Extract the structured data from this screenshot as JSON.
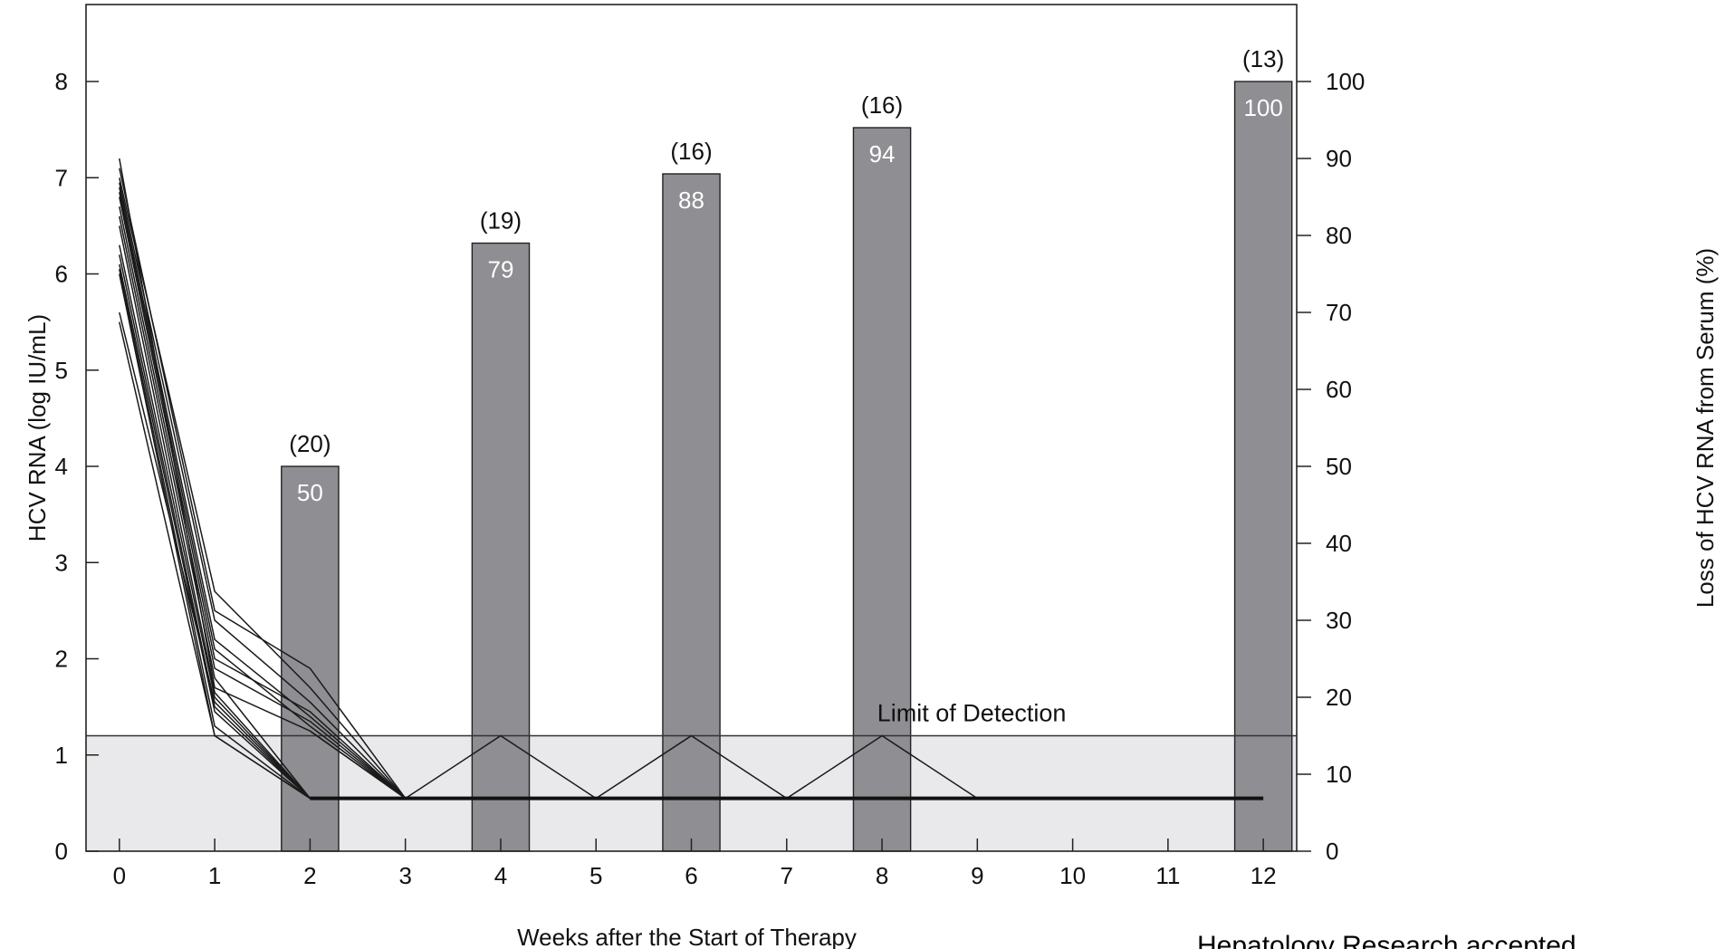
{
  "chart_data": {
    "type": "bar+line",
    "xlabel": "Weeks after the Start of Therapy",
    "ylabel_left": "HCV RNA (log IU/mL)",
    "ylabel_right": "Loss of HCV RNA from Serum (%)",
    "x_ticks": [
      0,
      1,
      2,
      3,
      4,
      5,
      6,
      7,
      8,
      9,
      10,
      11,
      12
    ],
    "xlim": [
      -0.35,
      12.35
    ],
    "y_left_ticks": [
      0,
      1,
      2,
      3,
      4,
      5,
      6,
      7,
      8
    ],
    "ylim_left": [
      0,
      8.8
    ],
    "y_right_ticks": [
      0,
      10,
      20,
      30,
      40,
      50,
      60,
      70,
      80,
      90,
      100
    ],
    "ylim_right": [
      0,
      110
    ],
    "grid": false,
    "limit_of_detection": {
      "label": "Limit of Detection",
      "value": 1.2,
      "undetectable_value": 0.55
    },
    "bars": [
      {
        "week": 2,
        "percent": 50,
        "n": "(20)",
        "label": "50"
      },
      {
        "week": 4,
        "percent": 79,
        "n": "(19)",
        "label": "79"
      },
      {
        "week": 6,
        "percent": 88,
        "n": "(16)",
        "label": "88"
      },
      {
        "week": 8,
        "percent": 94,
        "n": "(16)",
        "label": "94"
      },
      {
        "week": 12,
        "percent": 100,
        "n": "(13)",
        "label": "100"
      }
    ],
    "patient_series": [
      {
        "x": [
          0,
          1,
          2,
          3
        ],
        "y": [
          7.2,
          1.7,
          1.25,
          0.55
        ]
      },
      {
        "x": [
          0,
          1,
          2,
          3
        ],
        "y": [
          7.1,
          2.5,
          1.9,
          0.55
        ]
      },
      {
        "x": [
          0,
          1,
          2,
          3
        ],
        "y": [
          7.0,
          2.7,
          1.7,
          0.55
        ]
      },
      {
        "x": [
          0,
          1,
          2,
          3
        ],
        "y": [
          6.95,
          2.4,
          1.55,
          0.55
        ]
      },
      {
        "x": [
          0,
          1,
          2,
          3
        ],
        "y": [
          6.9,
          2.2,
          1.4,
          0.55
        ]
      },
      {
        "x": [
          0,
          1,
          2,
          3
        ],
        "y": [
          6.85,
          2.1,
          1.3,
          0.55
        ]
      },
      {
        "x": [
          0,
          1,
          2,
          3
        ],
        "y": [
          6.8,
          2.0,
          1.45,
          0.55
        ]
      },
      {
        "x": [
          0,
          1,
          2,
          3
        ],
        "y": [
          6.7,
          1.9,
          1.35,
          0.55
        ]
      },
      {
        "x": [
          0,
          1,
          2
        ],
        "y": [
          6.6,
          1.8,
          0.55
        ]
      },
      {
        "x": [
          0,
          1,
          2
        ],
        "y": [
          6.5,
          1.65,
          0.55
        ]
      },
      {
        "x": [
          0,
          1,
          2
        ],
        "y": [
          6.3,
          1.6,
          0.55
        ]
      },
      {
        "x": [
          0,
          1,
          2
        ],
        "y": [
          6.2,
          1.5,
          0.55
        ]
      },
      {
        "x": [
          0,
          1,
          2
        ],
        "y": [
          6.1,
          1.45,
          0.55
        ]
      },
      {
        "x": [
          0,
          1,
          2
        ],
        "y": [
          6.05,
          1.3,
          0.55
        ]
      },
      {
        "x": [
          0,
          1,
          2
        ],
        "y": [
          6.0,
          1.2,
          0.55
        ]
      },
      {
        "x": [
          0,
          1,
          2
        ],
        "y": [
          5.6,
          1.55,
          0.55
        ]
      },
      {
        "x": [
          0,
          1,
          2
        ],
        "y": [
          5.5,
          1.2,
          0.55
        ]
      },
      {
        "x": [
          2,
          3,
          4,
          5,
          6,
          7,
          8,
          9
        ],
        "y": [
          1.25,
          0.55,
          1.2,
          0.55,
          1.2,
          0.55,
          1.2,
          0.55
        ]
      }
    ],
    "undetectable_line": {
      "x": [
        2,
        12
      ],
      "y": [
        0.55,
        0.55
      ]
    }
  },
  "credit": "Hepatology Research accepted"
}
